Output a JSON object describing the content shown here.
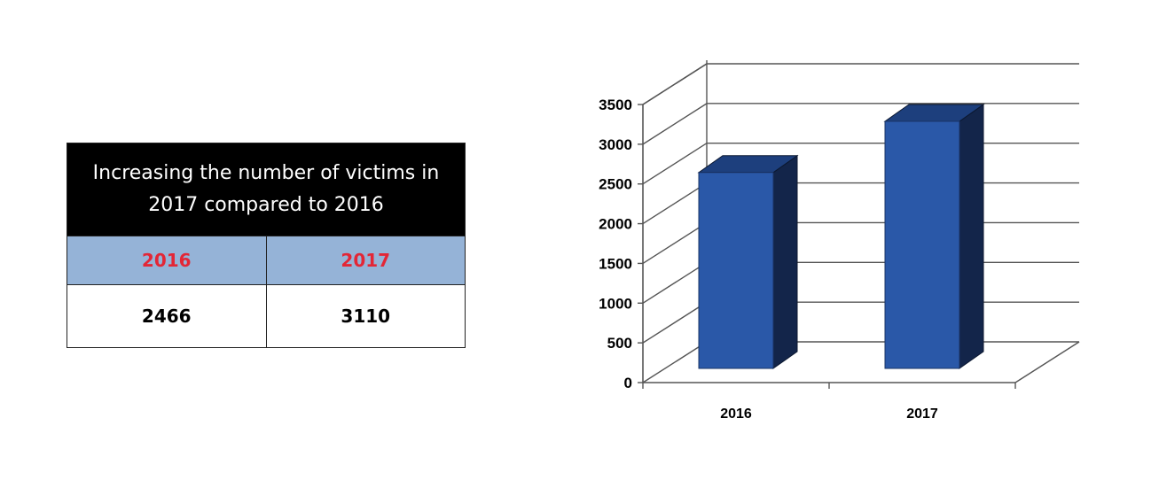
{
  "table": {
    "title": "Increasing the number of victims in 2017 compared to 2016",
    "headers": [
      "2016",
      "2017"
    ],
    "values": [
      "2466",
      "3110"
    ]
  },
  "chart_data": {
    "type": "bar",
    "categories": [
      "2016",
      "2017"
    ],
    "values": [
      2466,
      3110
    ],
    "ylim": [
      0,
      3500
    ],
    "yticks": [
      0,
      500,
      1000,
      1500,
      2000,
      2500,
      3000,
      3500
    ],
    "title": "",
    "xlabel": "",
    "ylabel": "",
    "style": "3d-column",
    "grid": true,
    "colors": {
      "bar_front": "#2a58a8",
      "bar_side": "#13254a",
      "bar_top": "#1d3f7d",
      "grid": "#555555"
    }
  }
}
